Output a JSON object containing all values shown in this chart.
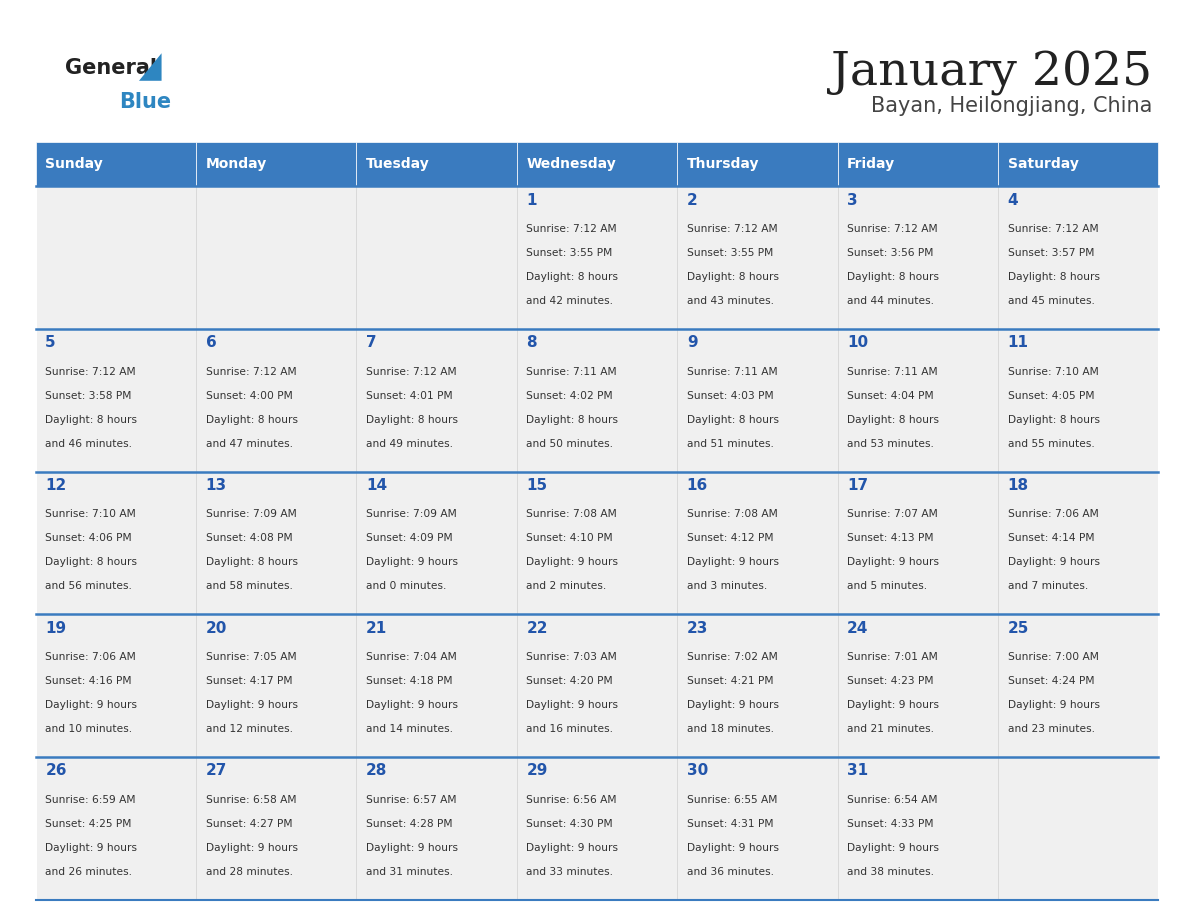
{
  "title": "January 2025",
  "subtitle": "Bayan, Heilongjiang, China",
  "header_color": "#3a7bbf",
  "header_text_color": "#ffffff",
  "cell_bg_light": "#f0f0f0",
  "day_number_color": "#2255aa",
  "text_color": "#333333",
  "border_color": "#3a7bbf",
  "days_of_week": [
    "Sunday",
    "Monday",
    "Tuesday",
    "Wednesday",
    "Thursday",
    "Friday",
    "Saturday"
  ],
  "calendar_data": [
    [
      null,
      null,
      null,
      {
        "day": 1,
        "sunrise": "7:12 AM",
        "sunset": "3:55 PM",
        "daylight_h": "8 hours",
        "daylight_m": "42 minutes."
      },
      {
        "day": 2,
        "sunrise": "7:12 AM",
        "sunset": "3:55 PM",
        "daylight_h": "8 hours",
        "daylight_m": "43 minutes."
      },
      {
        "day": 3,
        "sunrise": "7:12 AM",
        "sunset": "3:56 PM",
        "daylight_h": "8 hours",
        "daylight_m": "44 minutes."
      },
      {
        "day": 4,
        "sunrise": "7:12 AM",
        "sunset": "3:57 PM",
        "daylight_h": "8 hours",
        "daylight_m": "45 minutes."
      }
    ],
    [
      {
        "day": 5,
        "sunrise": "7:12 AM",
        "sunset": "3:58 PM",
        "daylight_h": "8 hours",
        "daylight_m": "46 minutes."
      },
      {
        "day": 6,
        "sunrise": "7:12 AM",
        "sunset": "4:00 PM",
        "daylight_h": "8 hours",
        "daylight_m": "47 minutes."
      },
      {
        "day": 7,
        "sunrise": "7:12 AM",
        "sunset": "4:01 PM",
        "daylight_h": "8 hours",
        "daylight_m": "49 minutes."
      },
      {
        "day": 8,
        "sunrise": "7:11 AM",
        "sunset": "4:02 PM",
        "daylight_h": "8 hours",
        "daylight_m": "50 minutes."
      },
      {
        "day": 9,
        "sunrise": "7:11 AM",
        "sunset": "4:03 PM",
        "daylight_h": "8 hours",
        "daylight_m": "51 minutes."
      },
      {
        "day": 10,
        "sunrise": "7:11 AM",
        "sunset": "4:04 PM",
        "daylight_h": "8 hours",
        "daylight_m": "53 minutes."
      },
      {
        "day": 11,
        "sunrise": "7:10 AM",
        "sunset": "4:05 PM",
        "daylight_h": "8 hours",
        "daylight_m": "55 minutes."
      }
    ],
    [
      {
        "day": 12,
        "sunrise": "7:10 AM",
        "sunset": "4:06 PM",
        "daylight_h": "8 hours",
        "daylight_m": "56 minutes."
      },
      {
        "day": 13,
        "sunrise": "7:09 AM",
        "sunset": "4:08 PM",
        "daylight_h": "8 hours",
        "daylight_m": "58 minutes."
      },
      {
        "day": 14,
        "sunrise": "7:09 AM",
        "sunset": "4:09 PM",
        "daylight_h": "9 hours",
        "daylight_m": "0 minutes."
      },
      {
        "day": 15,
        "sunrise": "7:08 AM",
        "sunset": "4:10 PM",
        "daylight_h": "9 hours",
        "daylight_m": "2 minutes."
      },
      {
        "day": 16,
        "sunrise": "7:08 AM",
        "sunset": "4:12 PM",
        "daylight_h": "9 hours",
        "daylight_m": "3 minutes."
      },
      {
        "day": 17,
        "sunrise": "7:07 AM",
        "sunset": "4:13 PM",
        "daylight_h": "9 hours",
        "daylight_m": "5 minutes."
      },
      {
        "day": 18,
        "sunrise": "7:06 AM",
        "sunset": "4:14 PM",
        "daylight_h": "9 hours",
        "daylight_m": "7 minutes."
      }
    ],
    [
      {
        "day": 19,
        "sunrise": "7:06 AM",
        "sunset": "4:16 PM",
        "daylight_h": "9 hours",
        "daylight_m": "10 minutes."
      },
      {
        "day": 20,
        "sunrise": "7:05 AM",
        "sunset": "4:17 PM",
        "daylight_h": "9 hours",
        "daylight_m": "12 minutes."
      },
      {
        "day": 21,
        "sunrise": "7:04 AM",
        "sunset": "4:18 PM",
        "daylight_h": "9 hours",
        "daylight_m": "14 minutes."
      },
      {
        "day": 22,
        "sunrise": "7:03 AM",
        "sunset": "4:20 PM",
        "daylight_h": "9 hours",
        "daylight_m": "16 minutes."
      },
      {
        "day": 23,
        "sunrise": "7:02 AM",
        "sunset": "4:21 PM",
        "daylight_h": "9 hours",
        "daylight_m": "18 minutes."
      },
      {
        "day": 24,
        "sunrise": "7:01 AM",
        "sunset": "4:23 PM",
        "daylight_h": "9 hours",
        "daylight_m": "21 minutes."
      },
      {
        "day": 25,
        "sunrise": "7:00 AM",
        "sunset": "4:24 PM",
        "daylight_h": "9 hours",
        "daylight_m": "23 minutes."
      }
    ],
    [
      {
        "day": 26,
        "sunrise": "6:59 AM",
        "sunset": "4:25 PM",
        "daylight_h": "9 hours",
        "daylight_m": "26 minutes."
      },
      {
        "day": 27,
        "sunrise": "6:58 AM",
        "sunset": "4:27 PM",
        "daylight_h": "9 hours",
        "daylight_m": "28 minutes."
      },
      {
        "day": 28,
        "sunrise": "6:57 AM",
        "sunset": "4:28 PM",
        "daylight_h": "9 hours",
        "daylight_m": "31 minutes."
      },
      {
        "day": 29,
        "sunrise": "6:56 AM",
        "sunset": "4:30 PM",
        "daylight_h": "9 hours",
        "daylight_m": "33 minutes."
      },
      {
        "day": 30,
        "sunrise": "6:55 AM",
        "sunset": "4:31 PM",
        "daylight_h": "9 hours",
        "daylight_m": "36 minutes."
      },
      {
        "day": 31,
        "sunrise": "6:54 AM",
        "sunset": "4:33 PM",
        "daylight_h": "9 hours",
        "daylight_m": "38 minutes."
      },
      null
    ]
  ]
}
